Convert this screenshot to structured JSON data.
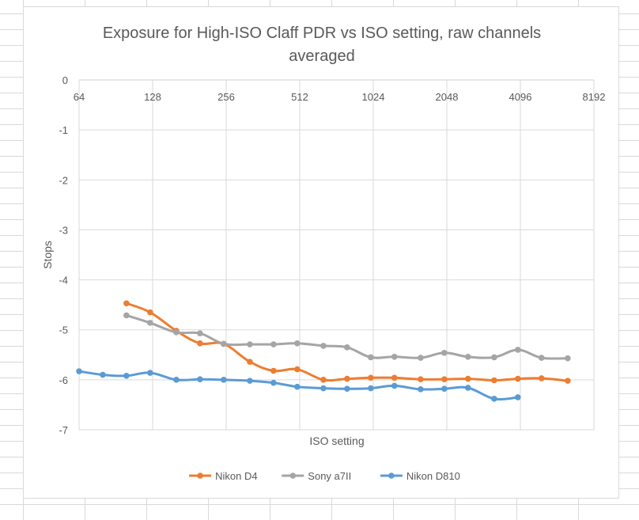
{
  "chart_data": {
    "type": "line",
    "title": "Exposure for High-ISO Claff PDR vs ISO setting, raw channels averaged",
    "title_lines": [
      "Exposure for High-ISO Claff PDR vs ISO setting, raw channels",
      "averaged"
    ],
    "xlabel": "ISO setting",
    "ylabel": "Stops",
    "x_scale": "log2",
    "xlim": [
      64,
      8192
    ],
    "ylim": [
      -7,
      0
    ],
    "x_ticks": [
      64,
      128,
      256,
      512,
      1024,
      2048,
      4096,
      8192
    ],
    "x_tick_labels": [
      "64",
      "128",
      "256",
      "512",
      "1024",
      "2048",
      "4096",
      "8192"
    ],
    "y_ticks": [
      0,
      -1,
      -2,
      -3,
      -4,
      -5,
      -6,
      -7
    ],
    "y_tick_labels": [
      "0",
      "-1",
      "-2",
      "-3",
      "-4",
      "-5",
      "-6",
      "-7"
    ],
    "grid": true,
    "legend_position": "bottom",
    "series": [
      {
        "name": "Nikon D4",
        "color": "#ed7d31",
        "x": [
          100,
          125,
          160,
          200,
          250,
          320,
          400,
          500,
          640,
          800,
          1000,
          1250,
          1600,
          2000,
          2500,
          3200,
          4000,
          5000,
          6400
        ],
        "y": [
          -4.47,
          -4.65,
          -5.02,
          -5.27,
          -5.28,
          -5.64,
          -5.82,
          -5.79,
          -6.0,
          -5.98,
          -5.96,
          -5.96,
          -5.99,
          -5.99,
          -5.98,
          -6.01,
          -5.98,
          -5.97,
          -6.02
        ]
      },
      {
        "name": "Sony a7II",
        "color": "#a5a5a5",
        "x": [
          100,
          125,
          160,
          200,
          250,
          320,
          400,
          500,
          640,
          800,
          1000,
          1250,
          1600,
          2000,
          2500,
          3200,
          4000,
          5000,
          6400
        ],
        "y": [
          -4.71,
          -4.86,
          -5.05,
          -5.07,
          -5.28,
          -5.29,
          -5.29,
          -5.27,
          -5.32,
          -5.35,
          -5.55,
          -5.54,
          -5.56,
          -5.46,
          -5.54,
          -5.55,
          -5.4,
          -5.56,
          -5.57
        ]
      },
      {
        "name": "Nikon D810",
        "color": "#5b9bd5",
        "x": [
          64,
          80,
          100,
          125,
          160,
          200,
          250,
          320,
          400,
          500,
          640,
          800,
          1000,
          1250,
          1600,
          2000,
          2500,
          3200,
          4000
        ],
        "y": [
          -5.83,
          -5.9,
          -5.92,
          -5.86,
          -6.0,
          -5.99,
          -6.0,
          -6.02,
          -6.06,
          -6.14,
          -6.17,
          -6.18,
          -6.17,
          -6.12,
          -6.19,
          -6.18,
          -6.16,
          -6.38,
          -6.35
        ]
      }
    ]
  }
}
